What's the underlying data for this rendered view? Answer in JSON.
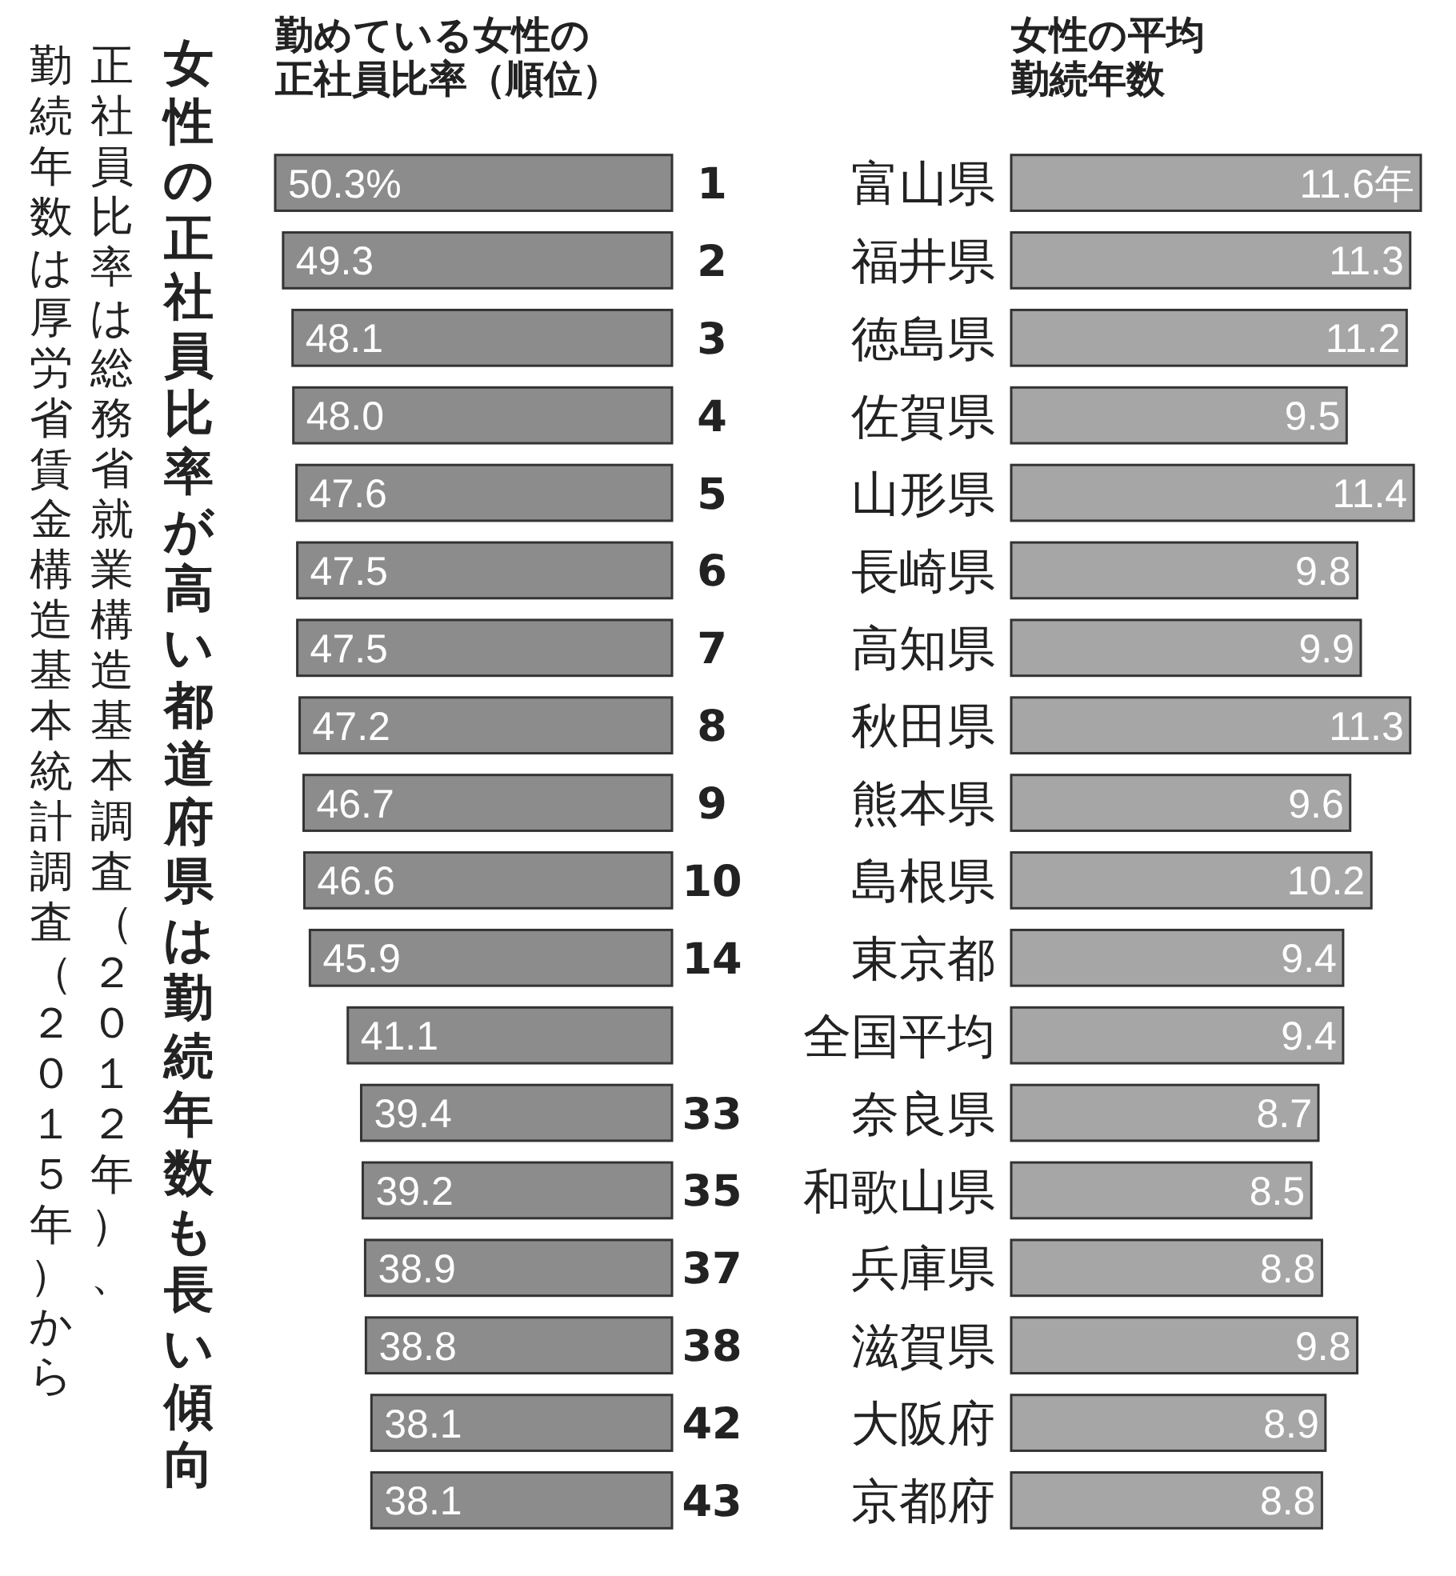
{
  "chart_data": [
    {
      "type": "bar",
      "orientation": "horizontal",
      "title": "勤めている女性の正社員比率（順位）",
      "categories": [
        "1",
        "2",
        "3",
        "4",
        "5",
        "6",
        "7",
        "8",
        "9",
        "10",
        "14",
        null,
        "33",
        "35",
        "37",
        "38",
        "42",
        "43"
      ],
      "values": [
        50.3,
        49.3,
        48.1,
        48.0,
        47.6,
        47.5,
        47.5,
        47.2,
        46.7,
        46.6,
        45.9,
        41.1,
        39.4,
        39.2,
        38.9,
        38.8,
        38.1,
        38.1
      ],
      "value_labels": [
        "50.3%",
        "49.3",
        "48.1",
        "48.0",
        "47.6",
        "47.5",
        "47.5",
        "47.2",
        "46.7",
        "46.6",
        "45.9",
        "41.1",
        "39.4",
        "39.2",
        "38.9",
        "38.8",
        "38.1",
        "38.1"
      ],
      "color": "#8c8c8c",
      "annotations": [
        "女性の正社員比率が高い都道府県は勤続年数も長い傾向",
        "正社員比率は総務省就業構造基本調査（２０１２年）、",
        "勤続年数は厚労省賃金構造基本統計調査（２０１５年）から"
      ]
    },
    {
      "type": "bar",
      "orientation": "horizontal",
      "title": "女性の平均勤続年数",
      "categories": [
        "富山県",
        "福井県",
        "徳島県",
        "佐賀県",
        "山形県",
        "長崎県",
        "高知県",
        "秋田県",
        "熊本県",
        "島根県",
        "東京都",
        "全国平均",
        "奈良県",
        "和歌山県",
        "兵庫県",
        "滋賀県",
        "大阪府",
        "京都府"
      ],
      "values": [
        11.6,
        11.3,
        11.2,
        9.5,
        11.4,
        9.8,
        9.9,
        11.3,
        9.6,
        10.2,
        9.4,
        9.4,
        8.7,
        8.5,
        8.8,
        9.8,
        8.9,
        8.8
      ],
      "value_labels": [
        "11.6年",
        "11.3",
        "11.2",
        "9.5",
        "11.4",
        "9.8",
        "9.9",
        "11.3",
        "9.6",
        "10.2",
        "9.4",
        "9.4",
        "8.7",
        "8.5",
        "8.8",
        "9.8",
        "8.9",
        "8.8"
      ],
      "color": "#a6a6a6"
    }
  ]
}
